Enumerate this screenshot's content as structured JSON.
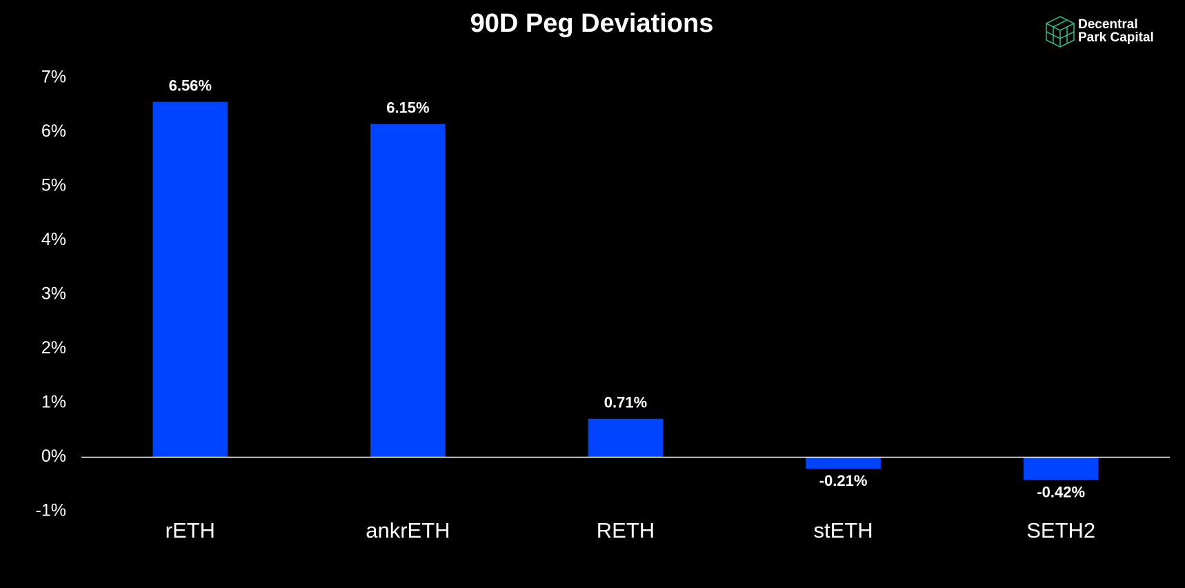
{
  "chart_data": {
    "type": "bar",
    "title": "90D Peg Deviations",
    "categories": [
      "rETH",
      "ankrETH",
      "RETH",
      "stETH",
      "SETH2"
    ],
    "values": [
      6.56,
      6.15,
      0.71,
      -0.21,
      -0.42
    ],
    "value_labels": [
      "6.56%",
      "6.15%",
      "0.71%",
      "-0.21%",
      "-0.42%"
    ],
    "color": "#0044ff",
    "ylim": [
      -1,
      7
    ],
    "yticks": [
      {
        "value": -1,
        "label": "-1%"
      },
      {
        "value": 0,
        "label": "0%"
      },
      {
        "value": 1,
        "label": "1%"
      },
      {
        "value": 2,
        "label": "2%"
      },
      {
        "value": 3,
        "label": "3%"
      },
      {
        "value": 4,
        "label": "4%"
      },
      {
        "value": 5,
        "label": "5%"
      },
      {
        "value": 6,
        "label": "6%"
      },
      {
        "value": 7,
        "label": "7%"
      }
    ],
    "grid": false,
    "annotations": [
      "Decentral",
      "Park Capital"
    ]
  }
}
